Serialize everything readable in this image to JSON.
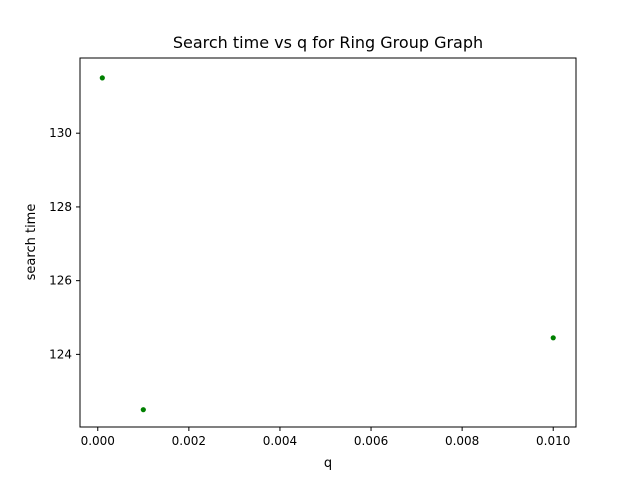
{
  "chart_data": {
    "type": "scatter",
    "title": "Search time vs q for Ring Group Graph",
    "xlabel": "q",
    "ylabel": "search time",
    "xlim": [
      -0.00039,
      0.0105
    ],
    "ylim": [
      122.03,
      132.04
    ],
    "x_ticks": [
      0.0,
      0.002,
      0.004,
      0.006,
      0.008,
      0.01
    ],
    "x_tick_labels": [
      "0.000",
      "0.002",
      "0.004",
      "0.006",
      "0.008",
      "0.010"
    ],
    "y_ticks": [
      124,
      126,
      128,
      130
    ],
    "y_tick_labels": [
      "124",
      "126",
      "128",
      "130"
    ],
    "grid": false,
    "series": [
      {
        "color": "#008000",
        "x": [
          0.0001,
          0.001,
          0.01
        ],
        "y": [
          131.5,
          122.5,
          124.45
        ]
      }
    ]
  }
}
